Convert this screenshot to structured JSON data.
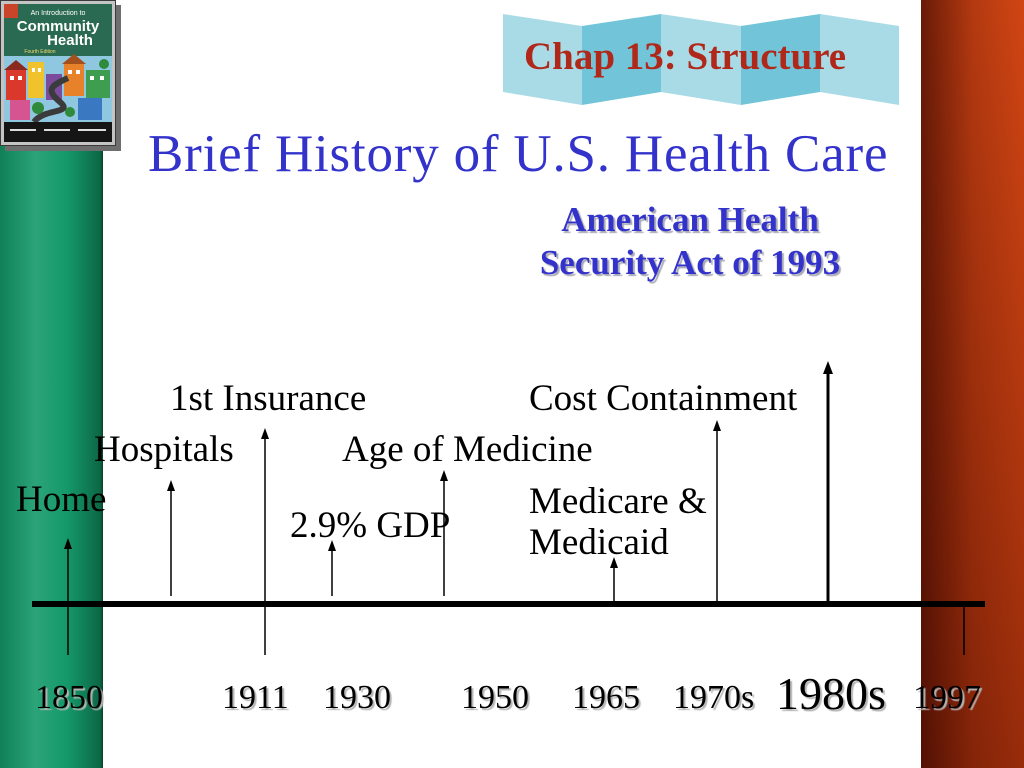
{
  "banner": {
    "text": "Chap 13: Structure"
  },
  "title": "Brief History of U.S. Health Care",
  "callout": {
    "line1": "American Health",
    "line2": "Security Act of 1993"
  },
  "book_cover": {
    "line1": "An Introduction to",
    "line2": "Community",
    "line3": "Health",
    "edition": "Fourth Edition"
  },
  "timeline": {
    "events": [
      {
        "label": "Home"
      },
      {
        "label": "Hospitals"
      },
      {
        "label": "1st Insurance"
      },
      {
        "label": "Age of Medicine"
      },
      {
        "label": "2.9% GDP"
      },
      {
        "label": "Cost Containment"
      },
      {
        "label_line1": "Medicare &",
        "label_line2": "Medicaid"
      }
    ],
    "years": [
      {
        "label": "1850"
      },
      {
        "label": "1911"
      },
      {
        "label": "1930"
      },
      {
        "label": "1950"
      },
      {
        "label": "1965"
      },
      {
        "label": "1970s"
      },
      {
        "label": "1980s",
        "emphasized": true
      },
      {
        "label": "1997"
      }
    ]
  },
  "colors": {
    "title_blue": "#3333cc",
    "banner_red": "#b0281a",
    "left_bar_green": "#14996a",
    "right_bar_red": "#c2380d",
    "ribbon_light": "#a9dbe7",
    "ribbon_dark": "#72c5d8",
    "timeline_black": "#000000"
  }
}
